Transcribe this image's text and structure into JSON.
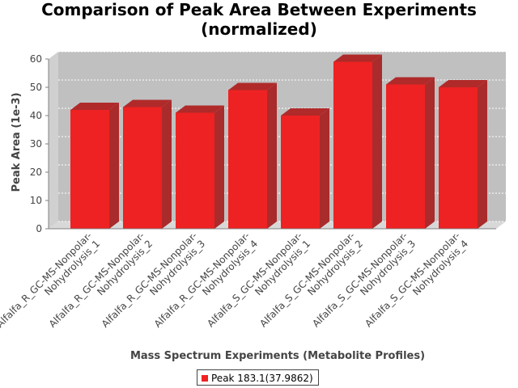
{
  "chart_data": {
    "type": "bar",
    "title_lines": [
      "Comparison of Peak Area Between Experiments",
      "(normalized)"
    ],
    "xlabel": "Mass Spectrum Experiments (Metabolite Profiles)",
    "ylabel": "Peak Area (1e-3)",
    "ylim": [
      0,
      60
    ],
    "yticks": [
      0,
      10,
      20,
      30,
      40,
      50,
      60
    ],
    "grid": true,
    "legend_position": "bottom-center",
    "categories": [
      [
        "Alfalfa_R_GC-MS-Nonpolar-",
        "Nohydrolysis_1"
      ],
      [
        "Alfalfa_R_GC-MS-Nonpolar-",
        "Nohydrolysis_2"
      ],
      [
        "Alfalfa_R_GC-MS-Nonpolar-",
        "Nohydrolysis_3"
      ],
      [
        "Alfalfa_R_GC-MS-Nonpolar-",
        "Nohydrolysis_4"
      ],
      [
        "Alfalfa_S_GC-MS-Nonpolar-",
        "Nohydrolysis_1"
      ],
      [
        "Alfalfa_S_GC-MS-Nonpolar-",
        "Nohydrolysis_2"
      ],
      [
        "Alfalfa_S_GC-MS-Nonpolar-",
        "Nohydrolysis_3"
      ],
      [
        "Alfalfa_S_GC-MS-Nonpolar-",
        "Nohydrolysis_4"
      ]
    ],
    "series": [
      {
        "name": "Peak 183.1(37.9862)",
        "color": "#ee2222",
        "values": [
          42,
          43,
          41,
          49,
          40,
          59,
          51,
          50
        ]
      }
    ]
  }
}
